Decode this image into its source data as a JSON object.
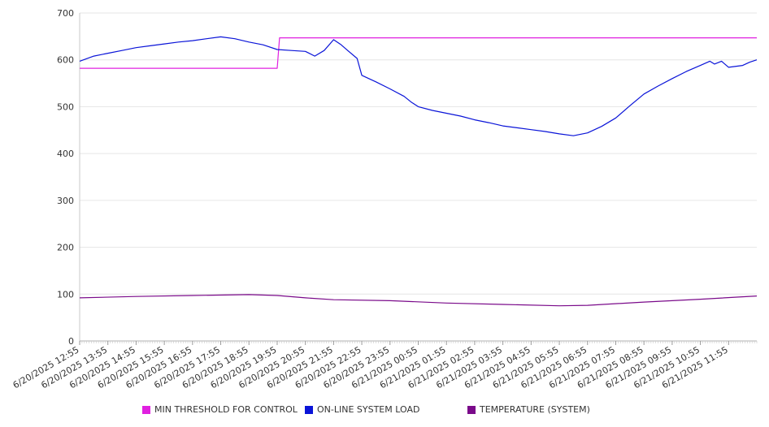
{
  "chart_data": {
    "type": "line",
    "title": "",
    "xlabel": "",
    "ylabel": "",
    "ylim": [
      0,
      700
    ],
    "yticks": [
      0,
      100,
      200,
      300,
      400,
      500,
      600,
      700
    ],
    "xticks": [
      "6/20/2025 12:55",
      "6/20/2025 13:55",
      "6/20/2025 14:55",
      "6/20/2025 15:55",
      "6/20/2025 16:55",
      "6/20/2025 17:55",
      "6/20/2025 18:55",
      "6/20/2025 19:55",
      "6/20/2025 20:55",
      "6/20/2025 21:55",
      "6/20/2025 22:55",
      "6/20/2025 23:55",
      "6/21/2025 00:55",
      "6/21/2025 01:55",
      "6/21/2025 02:55",
      "6/21/2025 03:55",
      "6/21/2025 04:55",
      "6/21/2025 05:55",
      "6/21/2025 06:55",
      "6/21/2025 07:55",
      "6/21/2025 08:55",
      "6/21/2025 09:55",
      "6/21/2025 10:55",
      "6/21/2025 11:55"
    ],
    "grid": true,
    "legend_position": "bottom",
    "series": [
      {
        "name": "MIN THRESHOLD FOR CONTROL",
        "color": "#e020e0",
        "points": [
          [
            "6/20/2025 12:55",
            582
          ],
          [
            "6/20/2025 19:55",
            582
          ],
          [
            "6/20/2025 20:00",
            647
          ],
          [
            "6/21/2025 12:55",
            647
          ]
        ]
      },
      {
        "name": "ON-LINE SYSTEM LOAD",
        "color": "#0a14d8",
        "points": [
          [
            "6/20/2025 12:55",
            597
          ],
          [
            "6/20/2025 13:25",
            608
          ],
          [
            "6/20/2025 13:55",
            614
          ],
          [
            "6/20/2025 14:25",
            620
          ],
          [
            "6/20/2025 14:55",
            626
          ],
          [
            "6/20/2025 15:25",
            630
          ],
          [
            "6/20/2025 15:55",
            634
          ],
          [
            "6/20/2025 16:25",
            638
          ],
          [
            "6/20/2025 16:55",
            641
          ],
          [
            "6/20/2025 17:25",
            645
          ],
          [
            "6/20/2025 17:55",
            649
          ],
          [
            "6/20/2025 18:25",
            645
          ],
          [
            "6/20/2025 18:55",
            638
          ],
          [
            "6/20/2025 19:25",
            632
          ],
          [
            "6/20/2025 19:55",
            622
          ],
          [
            "6/20/2025 20:25",
            620
          ],
          [
            "6/20/2025 20:55",
            618
          ],
          [
            "6/20/2025 21:15",
            608
          ],
          [
            "6/20/2025 21:35",
            620
          ],
          [
            "6/20/2025 21:55",
            643
          ],
          [
            "6/20/2025 22:10",
            633
          ],
          [
            "6/20/2025 22:25",
            620
          ],
          [
            "6/20/2025 22:45",
            603
          ],
          [
            "6/20/2025 22:55",
            567
          ],
          [
            "6/20/2025 23:25",
            553
          ],
          [
            "6/20/2025 23:55",
            538
          ],
          [
            "6/21/2025 00:25",
            522
          ],
          [
            "6/21/2025 00:40",
            510
          ],
          [
            "6/21/2025 00:55",
            500
          ],
          [
            "6/21/2025 01:25",
            492
          ],
          [
            "6/21/2025 01:55",
            486
          ],
          [
            "6/21/2025 02:25",
            480
          ],
          [
            "6/21/2025 02:55",
            472
          ],
          [
            "6/21/2025 03:25",
            466
          ],
          [
            "6/21/2025 03:55",
            459
          ],
          [
            "6/21/2025 04:25",
            455
          ],
          [
            "6/21/2025 04:55",
            451
          ],
          [
            "6/21/2025 05:25",
            447
          ],
          [
            "6/21/2025 05:55",
            442
          ],
          [
            "6/21/2025 06:25",
            438
          ],
          [
            "6/21/2025 06:55",
            444
          ],
          [
            "6/21/2025 07:25",
            458
          ],
          [
            "6/21/2025 07:55",
            476
          ],
          [
            "6/21/2025 08:25",
            502
          ],
          [
            "6/21/2025 08:55",
            527
          ],
          [
            "6/21/2025 09:25",
            544
          ],
          [
            "6/21/2025 09:55",
            560
          ],
          [
            "6/21/2025 10:25",
            575
          ],
          [
            "6/21/2025 10:55",
            588
          ],
          [
            "6/21/2025 11:15",
            597
          ],
          [
            "6/21/2025 11:25",
            591
          ],
          [
            "6/21/2025 11:40",
            597
          ],
          [
            "6/21/2025 11:55",
            584
          ],
          [
            "6/21/2025 12:25",
            588
          ],
          [
            "6/21/2025 12:40",
            595
          ],
          [
            "6/21/2025 12:55",
            600
          ]
        ]
      },
      {
        "name": "TEMPERATURE (SYSTEM)",
        "color": "#7a0a8a",
        "points": [
          [
            "6/20/2025 12:55",
            92
          ],
          [
            "6/20/2025 14:55",
            95
          ],
          [
            "6/20/2025 16:55",
            97
          ],
          [
            "6/20/2025 18:55",
            99
          ],
          [
            "6/20/2025 19:55",
            97
          ],
          [
            "6/20/2025 20:55",
            92
          ],
          [
            "6/20/2025 21:55",
            88
          ],
          [
            "6/20/2025 23:55",
            86
          ],
          [
            "6/21/2025 01:55",
            81
          ],
          [
            "6/21/2025 03:55",
            78
          ],
          [
            "6/21/2025 05:55",
            75
          ],
          [
            "6/21/2025 06:55",
            76
          ],
          [
            "6/21/2025 08:55",
            83
          ],
          [
            "6/21/2025 10:55",
            89
          ],
          [
            "6/21/2025 12:55",
            96
          ]
        ]
      }
    ]
  }
}
